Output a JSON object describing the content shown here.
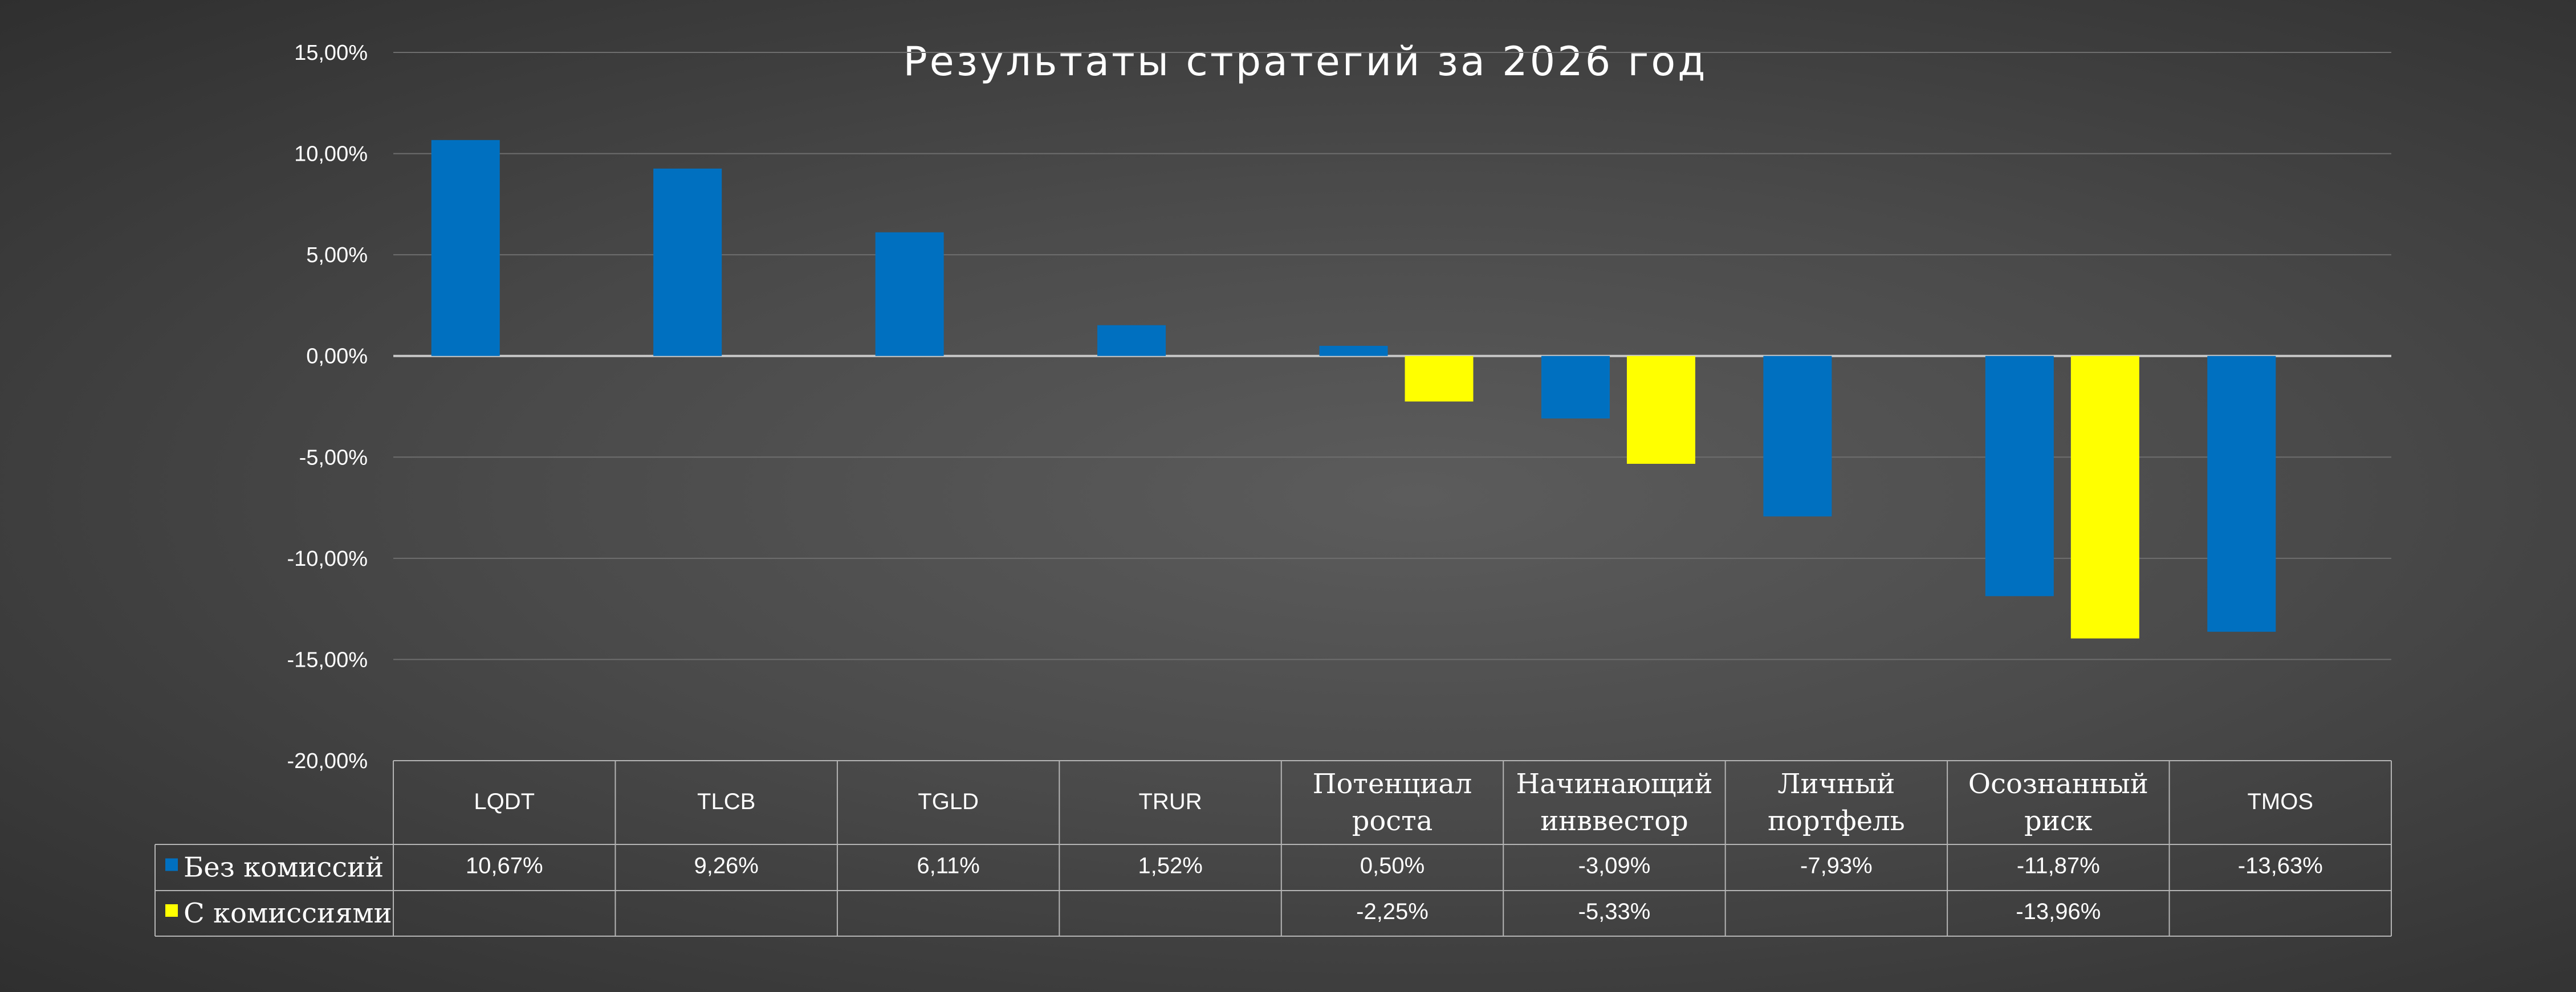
{
  "chart_data": {
    "type": "bar",
    "title": "Результаты стратегий за 2026 год",
    "categories": [
      [
        "LQDT"
      ],
      [
        "TLCB"
      ],
      [
        "TGLD"
      ],
      [
        "TRUR"
      ],
      [
        "Потенциал",
        "роста"
      ],
      [
        "Начинающий",
        "инввестор"
      ],
      [
        "Личный",
        "портфель"
      ],
      [
        "Осознанный",
        "риск"
      ],
      [
        "TMOS"
      ]
    ],
    "series": [
      {
        "name": "Без комиссий",
        "color": "#0070c0",
        "values": [
          10.67,
          9.26,
          6.11,
          1.52,
          0.5,
          -3.09,
          -7.93,
          -11.87,
          -13.63
        ],
        "labels": [
          "10,67%",
          "9,26%",
          "6,11%",
          "1,52%",
          "0,50%",
          "-3,09%",
          "-7,93%",
          "-11,87%",
          "-13,63%"
        ]
      },
      {
        "name": "С комиссиями",
        "color": "#ffff00",
        "values": [
          null,
          null,
          null,
          null,
          -2.25,
          -5.33,
          null,
          -13.96,
          null
        ],
        "labels": [
          "",
          "",
          "",
          "",
          "-2,25%",
          "-5,33%",
          "",
          "-13,96%",
          ""
        ]
      }
    ],
    "ylim": [
      -20,
      15
    ],
    "yticks": [
      15,
      10,
      5,
      0,
      -5,
      -10,
      -15,
      -20
    ],
    "ytick_labels": [
      "15,00%",
      "10,00%",
      "5,00%",
      "0,00%",
      "-5,00%",
      "-10,00%",
      "-15,00%",
      "-20,00%"
    ],
    "grid": true,
    "legend": "data-table"
  }
}
